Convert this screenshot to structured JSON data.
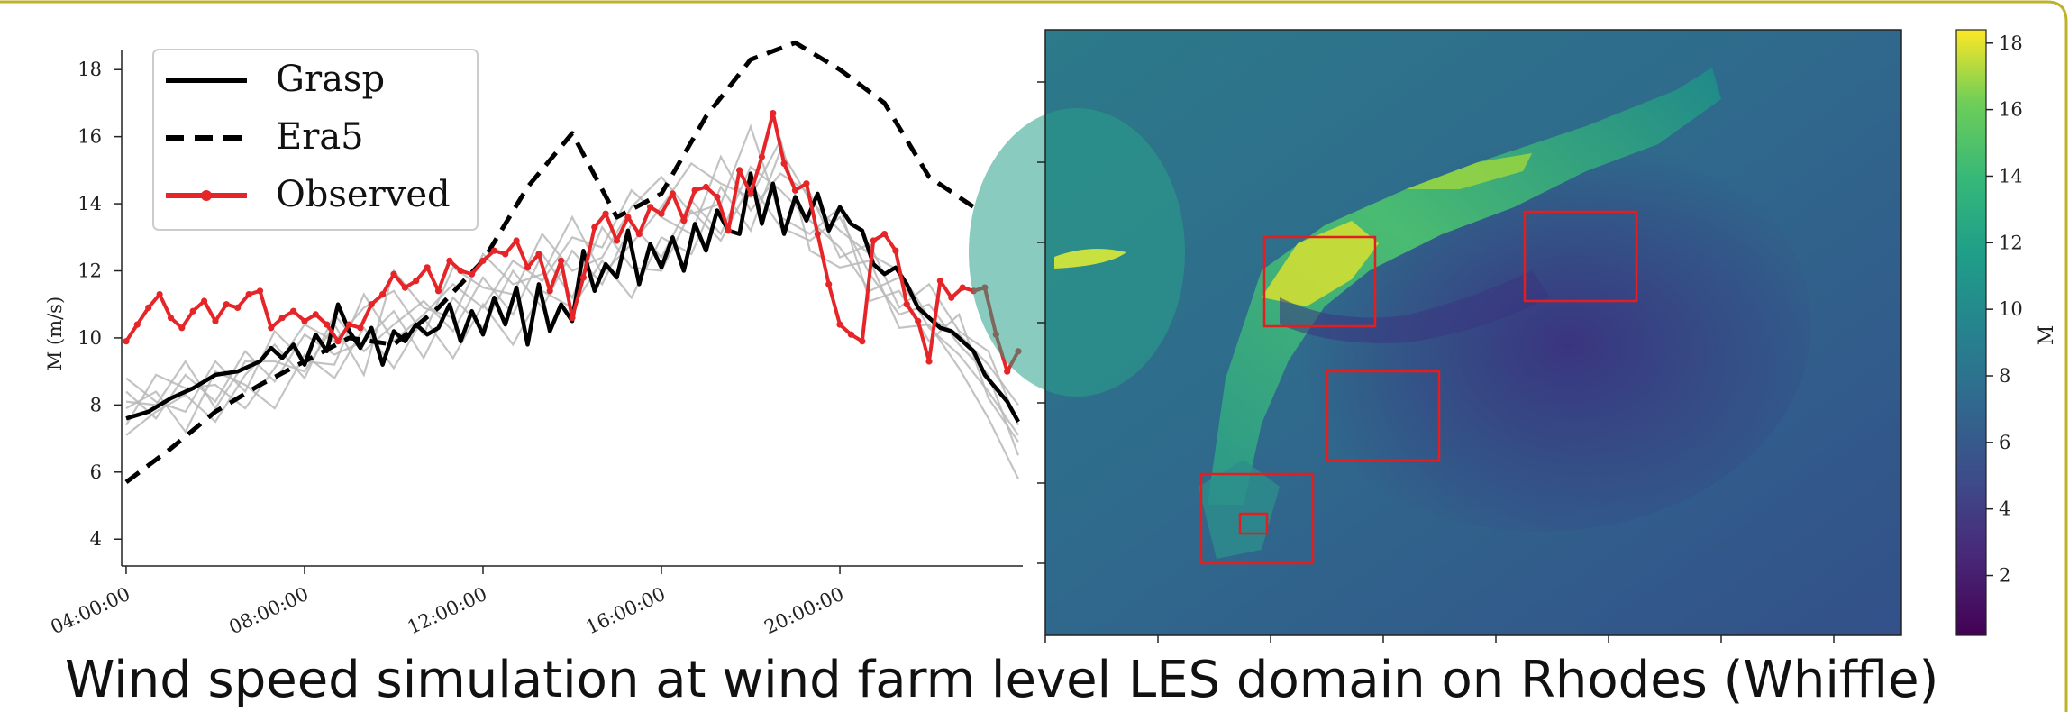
{
  "captions": {
    "left": "Wind speed simulation at wind farm level",
    "right": "LES domain on Rhodes (Whiffle)"
  },
  "colors": {
    "frame": "#bfb22a",
    "grasp": "#000000",
    "era5": "#000000",
    "observed": "#e52528",
    "ensemble": "#b8b8b8",
    "box": "#e02020"
  },
  "chart_data": [
    {
      "type": "line",
      "ylabel": "M (m/s)",
      "xlabel": "",
      "ylim": [
        3.2,
        19
      ],
      "xlim": [
        3.9,
        24.1
      ],
      "yticks": [
        4,
        6,
        8,
        10,
        12,
        14,
        16,
        18
      ],
      "xticks": [
        {
          "value": 4,
          "label": "04:00:00"
        },
        {
          "value": 8,
          "label": "08:00:00"
        },
        {
          "value": 12,
          "label": "12:00:00"
        },
        {
          "value": 16,
          "label": "16:00:00"
        },
        {
          "value": 20,
          "label": "20:00:00"
        }
      ],
      "legend": {
        "position": "top-left",
        "entries": [
          "Grasp",
          "Era5",
          "Observed"
        ]
      },
      "series": [
        {
          "name": "Grasp",
          "style": "solid",
          "x": [
            4.0,
            4.5,
            5.0,
            5.5,
            6.0,
            6.5,
            7.0,
            7.25,
            7.5,
            7.75,
            8.0,
            8.25,
            8.5,
            8.75,
            9.0,
            9.25,
            9.5,
            9.75,
            10.0,
            10.25,
            10.5,
            10.75,
            11.0,
            11.25,
            11.5,
            11.75,
            12.0,
            12.25,
            12.5,
            12.75,
            13.0,
            13.25,
            13.5,
            13.75,
            14.0,
            14.25,
            14.5,
            14.75,
            15.0,
            15.25,
            15.5,
            15.75,
            16.0,
            16.25,
            16.5,
            16.75,
            17.0,
            17.25,
            17.5,
            17.75,
            18.0,
            18.25,
            18.5,
            18.75,
            19.0,
            19.25,
            19.5,
            19.75,
            20.0,
            20.25,
            20.5,
            20.75,
            21.0,
            21.25,
            21.5,
            21.75,
            22.0,
            22.25,
            22.5,
            22.75,
            23.0,
            23.25,
            23.5,
            23.75,
            24.0
          ],
          "y": [
            7.6,
            7.8,
            8.2,
            8.5,
            8.9,
            9.0,
            9.3,
            9.7,
            9.4,
            9.8,
            9.2,
            10.1,
            9.6,
            11.0,
            10.2,
            9.7,
            10.3,
            9.2,
            10.2,
            9.9,
            10.4,
            10.1,
            10.3,
            11.0,
            9.9,
            10.8,
            10.1,
            11.2,
            10.4,
            11.5,
            9.8,
            11.6,
            10.2,
            11.0,
            10.5,
            12.6,
            11.4,
            12.2,
            11.8,
            13.2,
            11.6,
            12.8,
            12.1,
            13.0,
            12.0,
            13.4,
            12.6,
            13.8,
            13.2,
            13.1,
            14.9,
            13.4,
            14.6,
            13.1,
            14.2,
            13.5,
            14.3,
            13.2,
            13.9,
            13.4,
            13.2,
            12.2,
            11.9,
            12.1,
            11.6,
            10.9,
            10.6,
            10.3,
            10.2,
            9.9,
            9.6,
            8.9,
            8.5,
            8.1,
            7.5
          ]
        },
        {
          "name": "Era5",
          "style": "dashed",
          "x": [
            4,
            5,
            6,
            7,
            8,
            9,
            10,
            11,
            12,
            13,
            14,
            15,
            16,
            17,
            18,
            19,
            20,
            21,
            22,
            23
          ],
          "y": [
            5.7,
            6.7,
            7.8,
            8.6,
            9.3,
            10.0,
            9.8,
            10.9,
            12.3,
            14.5,
            16.1,
            13.6,
            14.3,
            16.6,
            18.3,
            18.8,
            18.0,
            17.0,
            14.8,
            13.9
          ]
        },
        {
          "name": "Observed",
          "style": "solid-marker",
          "x": [
            4.0,
            4.25,
            4.5,
            4.75,
            5.0,
            5.25,
            5.5,
            5.75,
            6.0,
            6.25,
            6.5,
            6.75,
            7.0,
            7.25,
            7.5,
            7.75,
            8.0,
            8.25,
            8.5,
            8.75,
            9.0,
            9.25,
            9.5,
            9.75,
            10.0,
            10.25,
            10.5,
            10.75,
            11.0,
            11.25,
            11.5,
            11.75,
            12.0,
            12.25,
            12.5,
            12.75,
            13.0,
            13.25,
            13.5,
            13.75,
            14.0,
            14.25,
            14.5,
            14.75,
            15.0,
            15.25,
            15.5,
            15.75,
            16.0,
            16.25,
            16.5,
            16.75,
            17.0,
            17.25,
            17.5,
            17.75,
            18.0,
            18.25,
            18.5,
            18.75,
            19.0,
            19.25,
            19.5,
            19.75,
            20.0,
            20.25,
            20.5,
            20.75,
            21.0,
            21.25,
            21.5,
            21.75,
            22.0,
            22.25,
            22.5,
            22.75,
            23.0,
            23.25,
            23.5,
            23.75,
            24.0
          ],
          "y": [
            9.9,
            10.4,
            10.9,
            11.3,
            10.6,
            10.3,
            10.8,
            11.1,
            10.5,
            11.0,
            10.9,
            11.3,
            11.4,
            10.3,
            10.6,
            10.8,
            10.5,
            10.7,
            10.4,
            9.9,
            10.4,
            10.3,
            11.0,
            11.3,
            11.9,
            11.5,
            11.7,
            12.1,
            11.4,
            12.3,
            12.0,
            11.9,
            12.3,
            12.6,
            12.5,
            12.9,
            12.1,
            12.5,
            11.4,
            12.3,
            10.6,
            11.8,
            13.3,
            13.7,
            12.9,
            13.6,
            13.1,
            13.9,
            13.7,
            14.3,
            13.5,
            14.4,
            14.5,
            14.2,
            13.2,
            15.0,
            14.3,
            15.4,
            16.7,
            15.2,
            14.4,
            14.6,
            13.1,
            11.6,
            10.4,
            10.1,
            9.9,
            12.9,
            13.1,
            12.6,
            11.0,
            10.5,
            9.3,
            11.7,
            11.2,
            11.5,
            11.4,
            11.5,
            10.1,
            9.0,
            9.6
          ]
        }
      ],
      "ensemble_members": [
        [
          7.9,
          8.4,
          7.2,
          9.0,
          8.6,
          7.9,
          9.5,
          8.8,
          10.3,
          9.1,
          10.6,
          9.4,
          11.0,
          9.8,
          11.4,
          10.9,
          12.3,
          11.2,
          13.0,
          12.5,
          14.5,
          13.2,
          15.6,
          14.1,
          13.2,
          12.5,
          12.0,
          10.6,
          10.1,
          9.2,
          8.0
        ],
        [
          8.4,
          7.6,
          8.9,
          8.1,
          9.6,
          8.7,
          10.1,
          9.5,
          9.9,
          10.8,
          9.4,
          11.2,
          10.3,
          12.0,
          10.9,
          12.6,
          11.6,
          13.4,
          12.4,
          14.1,
          13.1,
          15.1,
          14.4,
          13.5,
          12.7,
          11.4,
          11.8,
          10.3,
          9.5,
          8.4,
          7.1
        ],
        [
          7.1,
          7.8,
          8.3,
          7.5,
          8.9,
          9.8,
          8.8,
          10.7,
          9.6,
          10.4,
          11.1,
          10.2,
          11.8,
          10.7,
          12.5,
          11.2,
          13.3,
          12.1,
          12.0,
          13.8,
          12.9,
          14.6,
          13.3,
          12.9,
          13.6,
          11.9,
          10.7,
          11.0,
          9.8,
          8.9,
          6.5
        ],
        [
          8.8,
          8.1,
          7.8,
          9.3,
          8.4,
          10.2,
          9.3,
          9.2,
          11.3,
          9.9,
          10.7,
          11.6,
          10.9,
          12.3,
          11.7,
          13.0,
          12.7,
          14.4,
          13.6,
          13.1,
          15.4,
          13.8,
          14.9,
          14.3,
          12.4,
          12.8,
          10.9,
          11.6,
          10.2,
          9.6,
          7.4
        ],
        [
          7.4,
          8.9,
          8.5,
          8.6,
          7.9,
          9.1,
          10.4,
          9.9,
          10.9,
          11.4,
          10.1,
          12.1,
          11.5,
          11.3,
          13.1,
          12.0,
          12.4,
          13.9,
          14.8,
          13.7,
          14.0,
          16.3,
          13.6,
          13.1,
          13.9,
          11.1,
          11.4,
          9.9,
          10.7,
          8.2,
          6.9
        ],
        [
          8.1,
          8.0,
          9.3,
          7.9,
          9.3,
          9.3,
          9.0,
          10.4,
          8.9,
          12.0,
          10.9,
          10.6,
          12.5,
          11.6,
          11.9,
          13.6,
          11.9,
          12.8,
          13.9,
          15.2,
          14.6,
          14.2,
          15.9,
          12.6,
          12.1,
          12.3,
          10.3,
          10.4,
          9.1,
          7.6,
          5.8
        ]
      ],
      "ensemble_x": [
        4.0,
        4.67,
        5.33,
        6.0,
        6.67,
        7.33,
        8.0,
        8.67,
        9.33,
        10.0,
        10.67,
        11.33,
        12.0,
        12.67,
        13.33,
        14.0,
        14.67,
        15.33,
        16.0,
        16.67,
        17.33,
        18.0,
        18.67,
        19.33,
        20.0,
        20.67,
        21.33,
        22.0,
        22.67,
        23.33,
        24.0
      ]
    },
    {
      "type": "heatmap",
      "title": "",
      "colorbar": {
        "label": "M",
        "ticks": [
          2,
          4,
          6,
          8,
          10,
          12,
          14,
          16,
          18
        ],
        "range": [
          0.2,
          18.4
        ],
        "colormap": "viridis"
      },
      "highlight_boxes": 5
    }
  ]
}
